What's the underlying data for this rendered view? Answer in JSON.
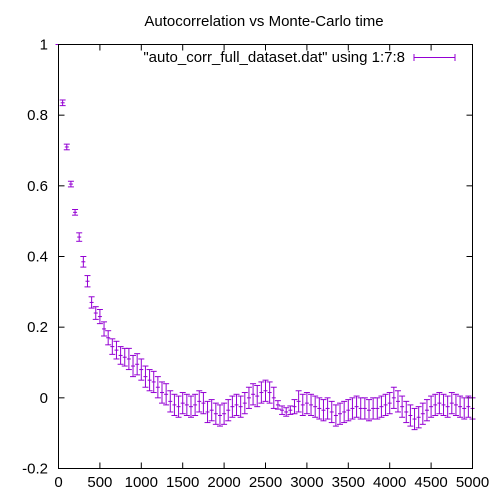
{
  "chart_data": {
    "type": "scatter",
    "style": "errorbars",
    "title": "Autocorrelation vs Monte-Carlo time",
    "xlabel": "",
    "ylabel": "",
    "xlim": [
      0,
      5000
    ],
    "ylim": [
      -0.2,
      1
    ],
    "xticks": [
      0,
      500,
      1000,
      1500,
      2000,
      2500,
      3000,
      3500,
      4000,
      4500,
      5000
    ],
    "yticks": [
      -0.2,
      0,
      0.2,
      0.4,
      0.6,
      0.8,
      1
    ],
    "ytick_labels": [
      "-0.2",
      "0",
      "0.2",
      "0.4",
      "0.6",
      "0.8",
      "1"
    ],
    "grid": false,
    "legend_position": "top-right",
    "series": [
      {
        "name": "\"auto_corr_full_dataset.dat\" using 1:7:8",
        "color": "#9400d3",
        "x": [
          0,
          50,
          100,
          150,
          200,
          250,
          300,
          350,
          400,
          450,
          500,
          550,
          600,
          650,
          700,
          750,
          800,
          850,
          900,
          950,
          1000,
          1050,
          1100,
          1150,
          1200,
          1250,
          1300,
          1350,
          1400,
          1450,
          1500,
          1550,
          1600,
          1650,
          1700,
          1750,
          1800,
          1850,
          1900,
          1950,
          2000,
          2050,
          2100,
          2150,
          2200,
          2250,
          2300,
          2350,
          2400,
          2450,
          2500,
          2550,
          2600,
          2650,
          2700,
          2750,
          2800,
          2850,
          2900,
          2950,
          3000,
          3050,
          3100,
          3150,
          3200,
          3250,
          3300,
          3350,
          3400,
          3450,
          3500,
          3550,
          3600,
          3650,
          3700,
          3750,
          3800,
          3850,
          3900,
          3950,
          4000,
          4050,
          4100,
          4150,
          4200,
          4250,
          4300,
          4350,
          4400,
          4450,
          4500,
          4550,
          4600,
          4650,
          4700,
          4750,
          4800,
          4850,
          4900,
          4950,
          5000
        ],
        "y": [
          1.0,
          0.835,
          0.71,
          0.605,
          0.525,
          0.455,
          0.385,
          0.33,
          0.27,
          0.24,
          0.23,
          0.195,
          0.17,
          0.145,
          0.135,
          0.12,
          0.115,
          0.11,
          0.09,
          0.095,
          0.08,
          0.06,
          0.05,
          0.045,
          0.03,
          0.015,
          0.01,
          -0.01,
          -0.02,
          -0.025,
          -0.015,
          -0.02,
          -0.025,
          -0.02,
          -0.01,
          -0.015,
          -0.04,
          -0.035,
          -0.045,
          -0.05,
          -0.045,
          -0.035,
          -0.025,
          -0.02,
          -0.025,
          -0.015,
          0.0,
          0.01,
          0.005,
          0.015,
          0.02,
          0.015,
          0.0,
          -0.02,
          -0.035,
          -0.04,
          -0.035,
          -0.025,
          -0.01,
          -0.02,
          -0.015,
          -0.02,
          -0.025,
          -0.03,
          -0.035,
          -0.03,
          -0.04,
          -0.05,
          -0.045,
          -0.04,
          -0.035,
          -0.03,
          -0.025,
          -0.03,
          -0.03,
          -0.035,
          -0.03,
          -0.03,
          -0.025,
          -0.02,
          -0.015,
          0.0,
          -0.01,
          -0.025,
          -0.04,
          -0.05,
          -0.06,
          -0.055,
          -0.045,
          -0.035,
          -0.025,
          -0.02,
          -0.015,
          -0.02,
          -0.025,
          -0.015,
          -0.02,
          -0.025,
          -0.03,
          -0.025,
          -0.03
        ],
        "err": [
          0.0,
          0.008,
          0.008,
          0.008,
          0.008,
          0.012,
          0.015,
          0.016,
          0.016,
          0.018,
          0.02,
          0.02,
          0.02,
          0.022,
          0.025,
          0.025,
          0.025,
          0.03,
          0.03,
          0.03,
          0.03,
          0.03,
          0.03,
          0.03,
          0.03,
          0.03,
          0.03,
          0.03,
          0.03,
          0.03,
          0.03,
          0.03,
          0.03,
          0.03,
          0.03,
          0.03,
          0.03,
          0.03,
          0.03,
          0.03,
          0.03,
          0.03,
          0.03,
          0.03,
          0.03,
          0.03,
          0.03,
          0.03,
          0.03,
          0.03,
          0.03,
          0.03,
          0.03,
          0.012,
          0.012,
          0.012,
          0.012,
          0.02,
          0.03,
          0.03,
          0.03,
          0.03,
          0.03,
          0.03,
          0.03,
          0.03,
          0.03,
          0.03,
          0.03,
          0.03,
          0.03,
          0.03,
          0.03,
          0.03,
          0.03,
          0.03,
          0.03,
          0.03,
          0.03,
          0.03,
          0.03,
          0.03,
          0.03,
          0.03,
          0.03,
          0.03,
          0.03,
          0.03,
          0.03,
          0.03,
          0.03,
          0.03,
          0.03,
          0.03,
          0.03,
          0.03,
          0.03,
          0.03,
          0.03,
          0.03,
          0.03
        ]
      }
    ]
  }
}
